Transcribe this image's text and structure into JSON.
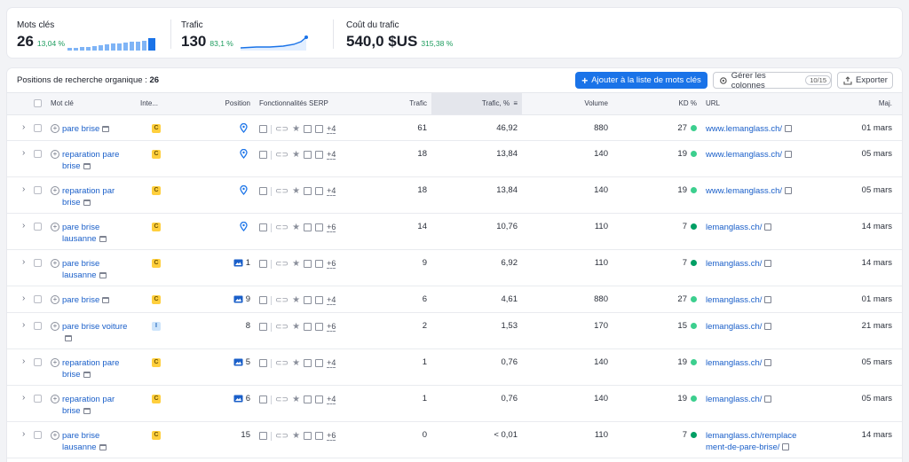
{
  "metrics": [
    {
      "label": "Mots clés",
      "value": "26",
      "change": "13,04 %"
    },
    {
      "label": "Trafic",
      "value": "130",
      "change": "83,1 %"
    },
    {
      "label": "Coût du trafic",
      "value": "540,0 $US",
      "change": "315,38 %"
    }
  ],
  "colors": {
    "accent": "#1a73e8",
    "positive": "#1d9c5e",
    "kd_green": "#3ccf8e",
    "kd_dark_green": "#009f64"
  },
  "table": {
    "title": "Positions de recherche organique :",
    "count": "26",
    "add_button": "Ajouter à la liste de mots clés",
    "columns_button": "Gérer les colonnes",
    "columns_count": "10/15",
    "export_button": "Exporter",
    "headers": {
      "keyword": "Mot clé",
      "intent": "Inte...",
      "position": "Position",
      "serp": "Fonctionnalités SERP",
      "traffic": "Trafic",
      "traffic_pct": "Trafic, %",
      "volume": "Volume",
      "kd": "KD %",
      "url": "URL",
      "updated": "Maj."
    },
    "rows": [
      {
        "keyword": "pare brise",
        "intent": "C",
        "position": "",
        "pos_icon": "pin-icon",
        "serp_more": "+4",
        "traffic": "61",
        "traffic_pct": "46,92",
        "volume": "880",
        "kd": "27",
        "kd_color": "#3ccf8e",
        "url": "www.lemanglass.ch/",
        "updated": "01 mars"
      },
      {
        "keyword": "reparation pare brise",
        "intent": "C",
        "position": "",
        "pos_icon": "pin-icon",
        "serp_more": "+4",
        "traffic": "18",
        "traffic_pct": "13,84",
        "volume": "140",
        "kd": "19",
        "kd_color": "#3ccf8e",
        "url": "www.lemanglass.ch/",
        "updated": "05 mars"
      },
      {
        "keyword": "reparation par brise",
        "intent": "C",
        "position": "",
        "pos_icon": "pin-icon",
        "serp_more": "+4",
        "traffic": "18",
        "traffic_pct": "13,84",
        "volume": "140",
        "kd": "19",
        "kd_color": "#3ccf8e",
        "url": "www.lemanglass.ch/",
        "updated": "05 mars"
      },
      {
        "keyword": "pare brise lausanne",
        "intent": "C",
        "position": "",
        "pos_icon": "pin-icon",
        "serp_more": "+6",
        "traffic": "14",
        "traffic_pct": "10,76",
        "volume": "110",
        "kd": "7",
        "kd_color": "#009f64",
        "url": "lemanglass.ch/",
        "updated": "14 mars"
      },
      {
        "keyword": "pare brise lausanne",
        "intent": "C",
        "position": "1",
        "pos_icon": "image-icon",
        "serp_more": "+6",
        "traffic": "9",
        "traffic_pct": "6,92",
        "volume": "110",
        "kd": "7",
        "kd_color": "#009f64",
        "url": "lemanglass.ch/",
        "updated": "14 mars"
      },
      {
        "keyword": "pare brise",
        "intent": "C",
        "position": "9",
        "pos_icon": "image-icon",
        "serp_more": "+4",
        "traffic": "6",
        "traffic_pct": "4,61",
        "volume": "880",
        "kd": "27",
        "kd_color": "#3ccf8e",
        "url": "lemanglass.ch/",
        "updated": "01 mars"
      },
      {
        "keyword": "pare brise voiture",
        "intent": "I",
        "position": "8",
        "pos_icon": "",
        "serp_more": "+6",
        "traffic": "2",
        "traffic_pct": "1,53",
        "volume": "170",
        "kd": "15",
        "kd_color": "#3ccf8e",
        "url": "lemanglass.ch/",
        "updated": "21 mars"
      },
      {
        "keyword": "reparation pare brise",
        "intent": "C",
        "position": "5",
        "pos_icon": "image-icon",
        "serp_more": "+4",
        "traffic": "1",
        "traffic_pct": "0,76",
        "volume": "140",
        "kd": "19",
        "kd_color": "#3ccf8e",
        "url": "lemanglass.ch/",
        "updated": "05 mars"
      },
      {
        "keyword": "reparation par brise",
        "intent": "C",
        "position": "6",
        "pos_icon": "image-icon",
        "serp_more": "+4",
        "traffic": "1",
        "traffic_pct": "0,76",
        "volume": "140",
        "kd": "19",
        "kd_color": "#3ccf8e",
        "url": "lemanglass.ch/",
        "updated": "05 mars"
      },
      {
        "keyword": "pare brise lausanne",
        "intent": "C",
        "position": "15",
        "pos_icon": "",
        "serp_more": "+6",
        "traffic": "0",
        "traffic_pct": "< 0,01",
        "volume": "110",
        "kd": "7",
        "kd_color": "#009f64",
        "url": "lemanglass.ch/remplacement-de-pare-brise/",
        "updated": "14 mars"
      }
    ]
  }
}
